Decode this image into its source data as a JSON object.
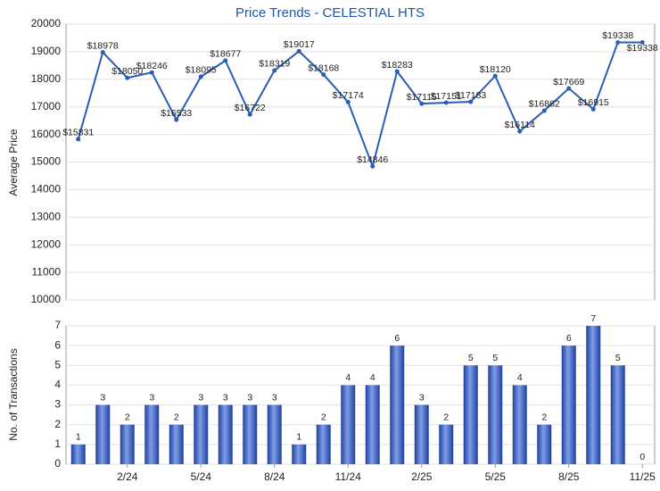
{
  "chart_data": [
    {
      "type": "line",
      "title": "Price Trends - CELESTIAL HTS",
      "y_label": "Average Price",
      "color": "#2a5db5",
      "values": [
        15831,
        18978,
        18050,
        18246,
        16533,
        18095,
        18677,
        16722,
        18319,
        19017,
        18168,
        17174,
        14846,
        18283,
        17115,
        17151,
        17183,
        18120,
        16114,
        16862,
        17669,
        16915,
        19338,
        19338
      ],
      "value_labels": [
        "$15831",
        "$18978",
        "$18050",
        "$18246",
        "$16533",
        "$18095",
        "$18677",
        "$16722",
        "$18319",
        "$19017",
        "$18168",
        "$17174",
        "$14846",
        "$18283",
        "$17115",
        "$17151",
        "$17183",
        "$18120",
        "$16114",
        "$16862",
        "$17669",
        "$16915",
        "$19338",
        "$19338"
      ],
      "ylim": [
        10000,
        20000
      ],
      "yticks": [
        10000,
        11000,
        12000,
        13000,
        14000,
        15000,
        16000,
        17000,
        18000,
        19000,
        20000
      ],
      "grid": true
    },
    {
      "type": "bar",
      "y_label": "No. of Transactions",
      "color": "#3a5fc4",
      "categories": [
        null,
        null,
        "2/24",
        null,
        null,
        "5/24",
        null,
        null,
        "8/24",
        null,
        null,
        "11/24",
        null,
        null,
        "2/25",
        null,
        null,
        "5/25",
        null,
        null,
        "8/25",
        null,
        null,
        "11/25"
      ],
      "values": [
        1,
        3,
        2,
        3,
        2,
        3,
        3,
        3,
        3,
        1,
        2,
        4,
        4,
        6,
        3,
        2,
        5,
        5,
        4,
        2,
        6,
        7,
        5,
        0
      ],
      "ylim": [
        0,
        7
      ],
      "yticks": [
        0,
        1,
        2,
        3,
        4,
        5,
        6,
        7
      ],
      "grid": true
    }
  ]
}
